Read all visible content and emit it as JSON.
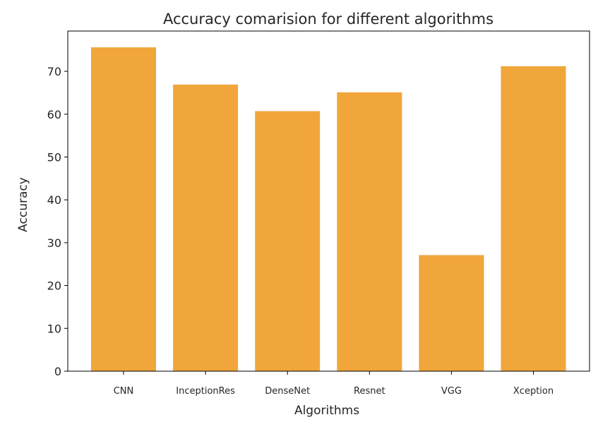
{
  "chart_data": {
    "type": "bar",
    "title": "Accuracy comarision for different algorithms",
    "xlabel": "Algorithms",
    "ylabel": "Accuracy",
    "categories": [
      "CNN",
      "InceptionRes",
      "DenseNet",
      "Resnet",
      "VGG",
      "Xception"
    ],
    "values": [
      75.6,
      66.9,
      60.7,
      65.1,
      27.1,
      71.2
    ],
    "ylim": [
      0,
      79.4
    ],
    "yticks": [
      "0",
      "10",
      "20",
      "30",
      "40",
      "50",
      "60",
      "70"
    ],
    "bar_color": "#f0a63a",
    "grid": false,
    "legend": "none"
  }
}
